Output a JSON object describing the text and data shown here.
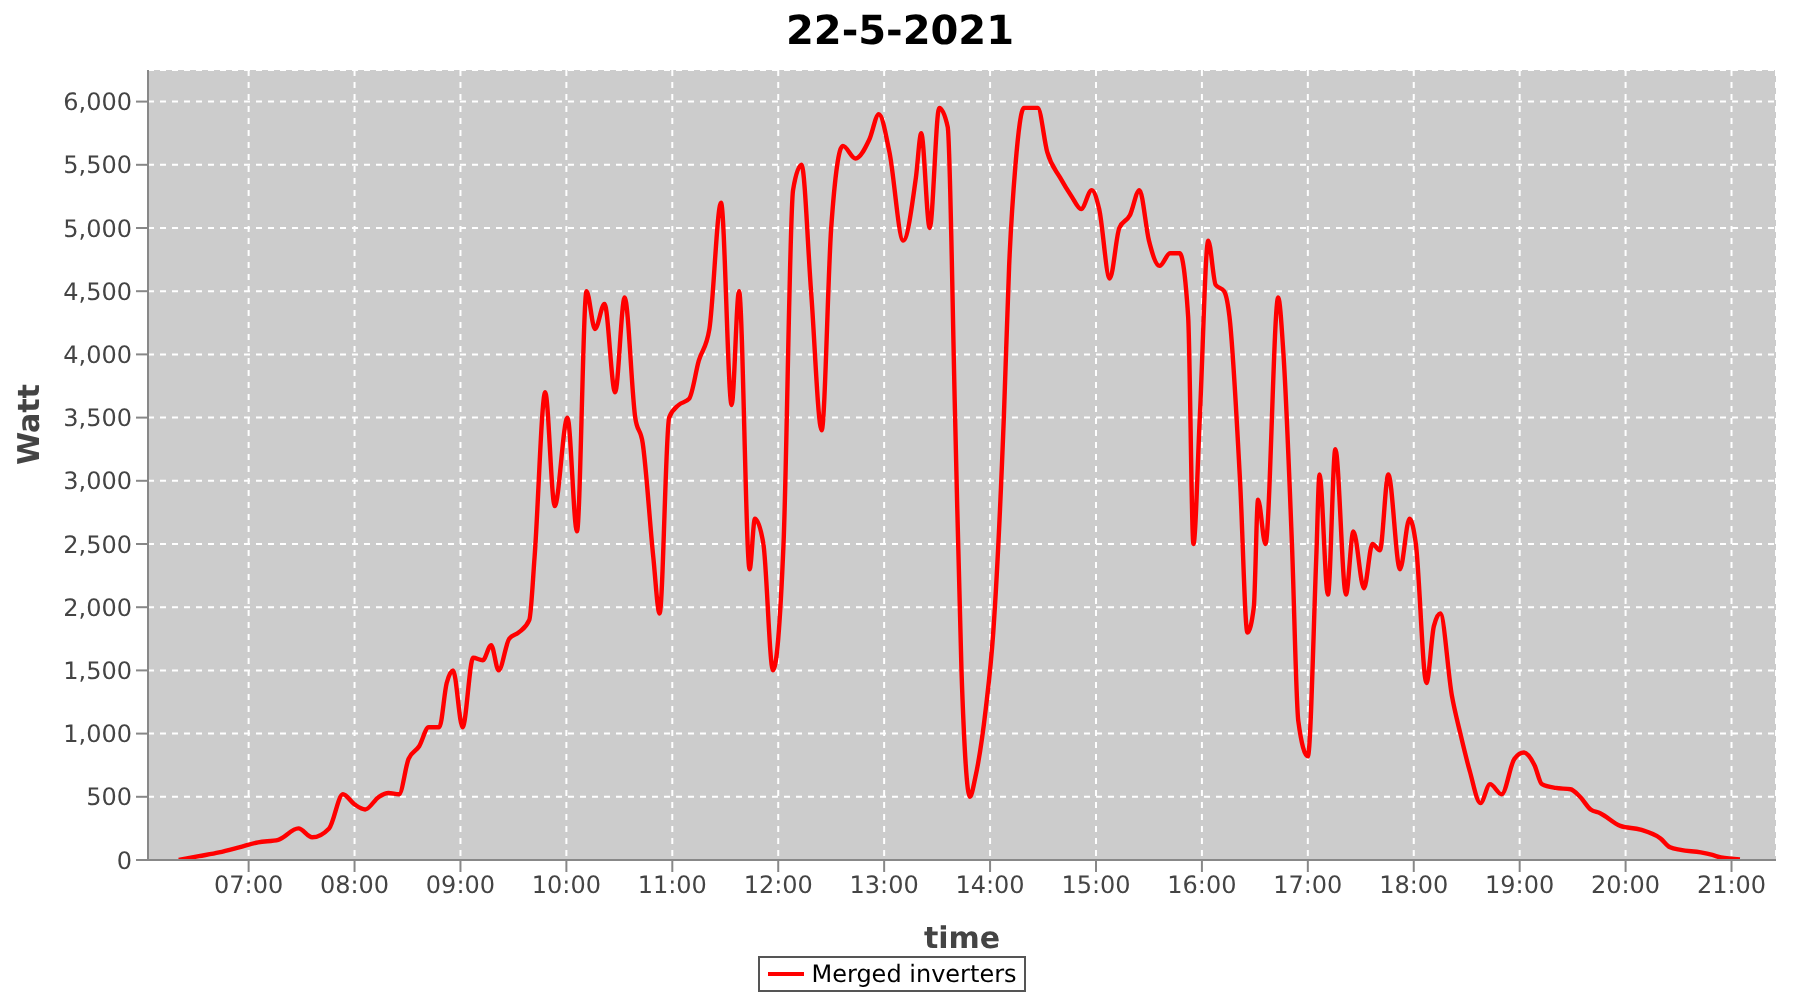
{
  "chart_data": {
    "type": "line",
    "title": "22-5-2021",
    "xlabel": "time",
    "ylabel": "Watt",
    "x": [
      6.34,
      6.53,
      6.72,
      6.91,
      7.09,
      7.28,
      7.47,
      7.6,
      7.76,
      7.89,
      8.0,
      8.1,
      8.23,
      8.32,
      8.42,
      8.51,
      8.61,
      8.7,
      8.8,
      8.87,
      8.93,
      9.02,
      9.12,
      9.21,
      9.29,
      9.36,
      9.46,
      9.55,
      9.65,
      9.7,
      9.8,
      9.89,
      10.01,
      10.1,
      10.19,
      10.27,
      10.36,
      10.46,
      10.55,
      10.65,
      10.72,
      10.82,
      10.88,
      10.97,
      11.06,
      11.16,
      11.25,
      11.35,
      11.46,
      11.56,
      11.63,
      11.73,
      11.78,
      11.86,
      11.95,
      12.05,
      12.14,
      12.22,
      12.31,
      12.41,
      12.5,
      12.61,
      12.73,
      12.86,
      12.95,
      13.05,
      13.18,
      13.3,
      13.35,
      13.43,
      13.52,
      13.6,
      13.67,
      13.73,
      13.81,
      13.86,
      13.96,
      14.03,
      14.13,
      14.18,
      14.24,
      14.32,
      14.45,
      14.54,
      14.66,
      14.77,
      14.86,
      14.96,
      15.03,
      15.13,
      15.22,
      15.32,
      15.41,
      15.5,
      15.6,
      15.7,
      15.79,
      15.87,
      15.92,
      15.98,
      16.06,
      16.13,
      16.21,
      16.26,
      16.36,
      16.43,
      16.49,
      16.53,
      16.6,
      16.72,
      16.77,
      16.85,
      16.91,
      17.0,
      17.08,
      17.11,
      17.19,
      17.26,
      17.36,
      17.43,
      17.53,
      17.61,
      17.68,
      17.76,
      17.87,
      17.96,
      18.02,
      18.12,
      18.19,
      18.25,
      18.36,
      18.44,
      18.53,
      18.63,
      18.72,
      18.83,
      18.95,
      19.04,
      19.14,
      19.21,
      19.34,
      19.48,
      19.57,
      19.67,
      19.76,
      19.95,
      20.14,
      20.33,
      20.42,
      20.52,
      20.71,
      20.82,
      20.9,
      21.08
    ],
    "series": [
      {
        "name": "Merged inverters",
        "color": "#ff0000",
        "values": [
          0,
          30,
          60,
          100,
          140,
          160,
          250,
          180,
          250,
          520,
          440,
          400,
          500,
          530,
          520,
          800,
          900,
          1050,
          1050,
          1400,
          1500,
          1050,
          1600,
          1580,
          1700,
          1500,
          1750,
          1800,
          1900,
          2400,
          3700,
          2800,
          3500,
          2600,
          4500,
          4200,
          4400,
          3700,
          4450,
          3500,
          3300,
          2400,
          1950,
          3500,
          3600,
          3650,
          3950,
          4200,
          5200,
          3600,
          4500,
          2300,
          2700,
          2500,
          1500,
          2500,
          5300,
          5500,
          4500,
          3400,
          5000,
          5650,
          5550,
          5700,
          5900,
          5600,
          4900,
          5400,
          5750,
          5000,
          5950,
          5800,
          3500,
          1500,
          500,
          650,
          1200,
          1800,
          3500,
          4700,
          5500,
          5950,
          5950,
          5600,
          5400,
          5250,
          5150,
          5300,
          5150,
          4600,
          5000,
          5100,
          5300,
          4900,
          4700,
          4800,
          4800,
          4300,
          2500,
          3500,
          4900,
          4550,
          4500,
          4300,
          3000,
          1800,
          2000,
          2850,
          2500,
          4450,
          4000,
          2500,
          1100,
          820,
          2400,
          3050,
          2100,
          3250,
          2100,
          2600,
          2150,
          2500,
          2450,
          3050,
          2300,
          2700,
          2500,
          1400,
          1850,
          1950,
          1300,
          1000,
          700,
          450,
          600,
          520,
          800,
          850,
          750,
          600,
          570,
          560,
          500,
          400,
          370,
          270,
          240,
          170,
          100,
          80,
          60,
          40,
          20,
          5
        ]
      }
    ],
    "xlim": [
      6.05,
      21.42
    ],
    "xticks": [
      {
        "value": 7,
        "label": "07:00"
      },
      {
        "value": 8,
        "label": "08:00"
      },
      {
        "value": 9,
        "label": "09:00"
      },
      {
        "value": 10,
        "label": "10:00"
      },
      {
        "value": 11,
        "label": "11:00"
      },
      {
        "value": 12,
        "label": "12:00"
      },
      {
        "value": 13,
        "label": "13:00"
      },
      {
        "value": 14,
        "label": "14:00"
      },
      {
        "value": 15,
        "label": "15:00"
      },
      {
        "value": 16,
        "label": "16:00"
      },
      {
        "value": 17,
        "label": "17:00"
      },
      {
        "value": 18,
        "label": "18:00"
      },
      {
        "value": 19,
        "label": "19:00"
      },
      {
        "value": 20,
        "label": "20:00"
      },
      {
        "value": 21,
        "label": "21:00"
      }
    ],
    "ylim": [
      0,
      6250
    ],
    "yticks": [
      0,
      500,
      {
        "value": 1000,
        "label": "1,000"
      },
      {
        "value": 1500,
        "label": "1,500"
      },
      {
        "value": 2000,
        "label": "2,000"
      },
      {
        "value": 2500,
        "label": "2,500"
      },
      {
        "value": 3000,
        "label": "3,000"
      },
      {
        "value": 3500,
        "label": "3,500"
      },
      {
        "value": 4000,
        "label": "4,000"
      },
      {
        "value": 4500,
        "label": "4,500"
      },
      {
        "value": 5000,
        "label": "5,000"
      },
      {
        "value": 5500,
        "label": "5,500"
      },
      {
        "value": 6000,
        "label": "6,000"
      }
    ],
    "grid": true,
    "legend": "bottom",
    "line_style": "solid"
  }
}
